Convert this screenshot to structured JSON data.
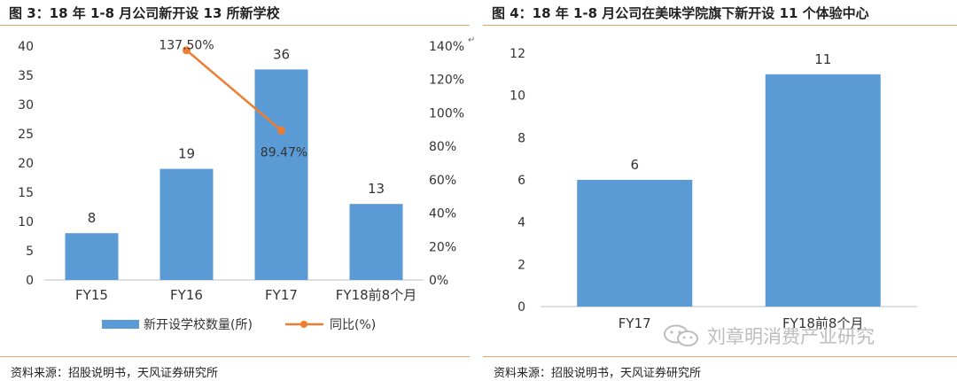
{
  "figures": [
    {
      "title": "图 3：18 年 1-8 月公司新开设 13 所新学校",
      "source": "资料来源：招股说明书，天风证券研究所"
    },
    {
      "title": "图 4：18 年 1-8 月公司在美味学院旗下新开设 11 个体验中心",
      "source": "资料来源：招股说明书，天风证券研究所"
    }
  ],
  "watermark": "刘章明消费产业研究",
  "colors": {
    "bar": "#5b9bd5",
    "line": "#ed7d31",
    "rule": "#e8a46a"
  },
  "chart_data": [
    {
      "type": "bar",
      "categories": [
        "FY15",
        "FY16",
        "FY17",
        "FY18前8个月"
      ],
      "series": [
        {
          "name": "新开设学校数量(所)",
          "values": [
            8,
            19,
            36,
            13
          ],
          "axis": "left",
          "data_labels": [
            "8",
            "19",
            "36",
            "13"
          ]
        },
        {
          "name": "同比(%)",
          "type": "line",
          "x": [
            "FY16",
            "FY17"
          ],
          "values": [
            137.5,
            89.47
          ],
          "axis": "right",
          "data_labels": [
            "137.50%",
            "89.47%"
          ]
        }
      ],
      "ylim": [
        0,
        40
      ],
      "yticks": [
        "0",
        "5",
        "10",
        "15",
        "20",
        "25",
        "30",
        "35",
        "40"
      ],
      "y2lim": [
        0,
        140
      ],
      "y2ticks": [
        "0%",
        "20%",
        "40%",
        "60%",
        "80%",
        "100%",
        "120%",
        "140%"
      ],
      "legend": "bottom",
      "grid": false
    },
    {
      "type": "bar",
      "categories": [
        "FY17",
        "FY18前8个月"
      ],
      "values": [
        6,
        11
      ],
      "data_labels": [
        "6",
        "11"
      ],
      "ylim": [
        0,
        12
      ],
      "yticks": [
        "0",
        "2",
        "4",
        "6",
        "8",
        "10",
        "12"
      ],
      "grid": false
    }
  ]
}
